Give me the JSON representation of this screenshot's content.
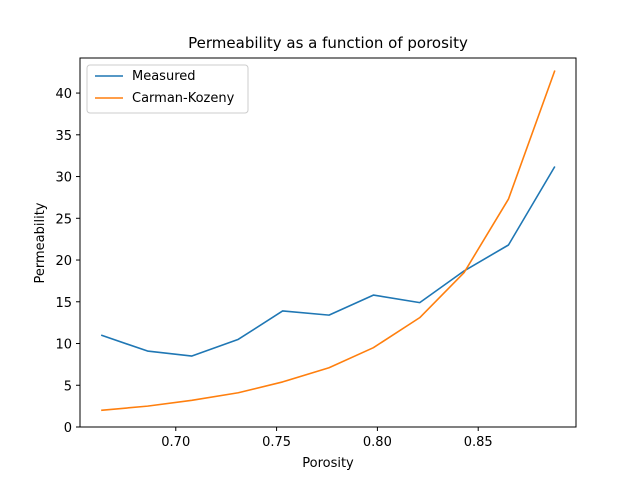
{
  "chart_data": {
    "type": "line",
    "title": "Permeability as a function of porosity",
    "xlabel": "Porosity",
    "ylabel": "Permeability",
    "xlim": [
      0.6525,
      0.8985
    ],
    "ylim": [
      0,
      44.2
    ],
    "xticks": [
      0.7,
      0.75,
      0.8,
      0.85
    ],
    "xtick_labels": [
      "0.70",
      "0.75",
      "0.80",
      "0.85"
    ],
    "yticks": [
      0,
      5,
      10,
      15,
      20,
      25,
      30,
      35,
      40
    ],
    "ytick_labels": [
      "0",
      "5",
      "10",
      "15",
      "20",
      "25",
      "30",
      "35",
      "40"
    ],
    "grid": false,
    "legend_position": "upper-left",
    "x": [
      0.663,
      0.686,
      0.708,
      0.731,
      0.753,
      0.776,
      0.798,
      0.821,
      0.843,
      0.865,
      0.888
    ],
    "series": [
      {
        "name": "Measured",
        "color": "#1f77b4",
        "values": [
          11.0,
          9.1,
          8.5,
          10.5,
          13.9,
          13.4,
          15.8,
          14.9,
          18.7,
          21.8,
          31.2
        ]
      },
      {
        "name": "Carman-Kozeny",
        "color": "#ff7f0e",
        "values": [
          2.0,
          2.5,
          3.2,
          4.1,
          5.4,
          7.1,
          9.5,
          13.1,
          18.5,
          27.3,
          42.7
        ]
      }
    ]
  }
}
